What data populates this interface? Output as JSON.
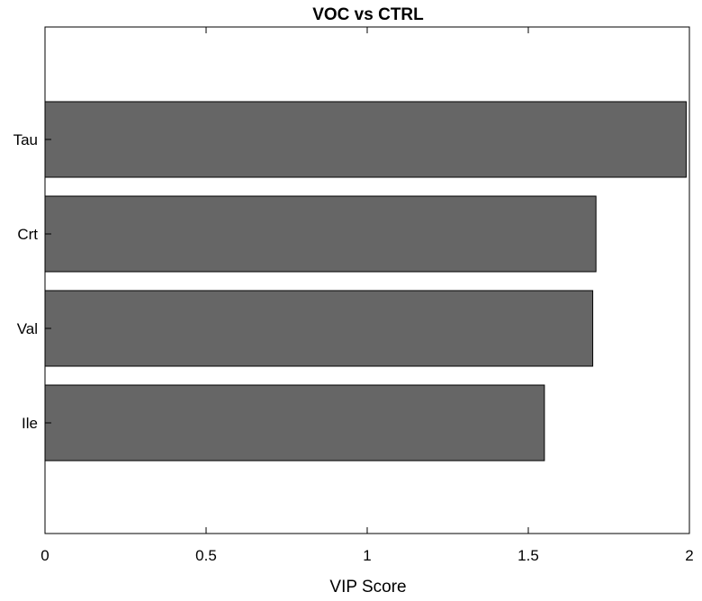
{
  "chart_data": {
    "type": "bar",
    "orientation": "horizontal",
    "title": "VOC vs CTRL",
    "xlabel": "VIP Score",
    "ylabel": "",
    "categories": [
      "Tau",
      "Crt",
      "Val",
      "Ile"
    ],
    "values": [
      1.99,
      1.71,
      1.7,
      1.55
    ],
    "xlim": [
      0,
      2
    ],
    "xticks": [
      "0",
      "0.5",
      "1",
      "1.5",
      "2"
    ],
    "grid": false,
    "legend": "none",
    "colors": {
      "bar_fill": "#666666",
      "bar_stroke": "#000000",
      "axis": "#000000",
      "background": "#ffffff"
    }
  }
}
